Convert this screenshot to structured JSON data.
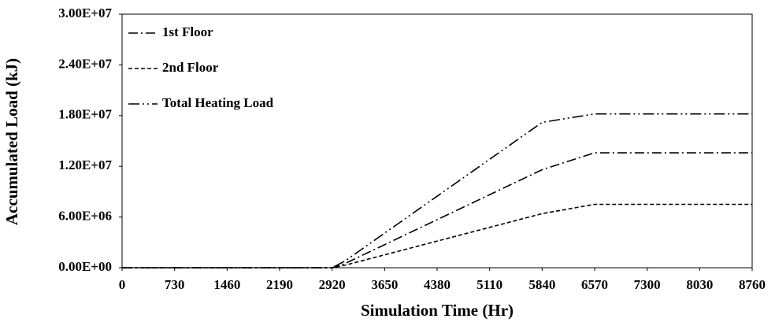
{
  "chart_data": {
    "type": "line",
    "x_label": "Simulation Time (Hr)",
    "y_label": "Accumulated Load (kJ)",
    "x": [
      0,
      2920,
      3100,
      5840,
      6570,
      8760
    ],
    "series": [
      {
        "name": "1st Floor",
        "color": "#000000",
        "style": "dash-dot",
        "values": [
          0,
          0,
          500000,
          11600000,
          13600000,
          13600000
        ]
      },
      {
        "name": "2nd Floor",
        "color": "#000000",
        "style": "dash",
        "values": [
          0,
          0,
          300000,
          6400000,
          7500000,
          7500000
        ]
      },
      {
        "name": "Total Heating Load",
        "color": "#000000",
        "style": "dash-dot-dot",
        "values": [
          0,
          0,
          800000,
          17200000,
          18200000,
          18200000
        ]
      }
    ],
    "xlim": [
      0,
      8760
    ],
    "xticks": [
      0,
      730,
      1460,
      2190,
      2920,
      3650,
      4380,
      5110,
      5840,
      6570,
      7300,
      8030,
      8760
    ],
    "ylim": [
      0,
      30000000
    ],
    "yticks": [
      {
        "value": 0,
        "label": "0.00E+00"
      },
      {
        "value": 6000000,
        "label": "6.00E+06"
      },
      {
        "value": 12000000,
        "label": "1.20E+07"
      },
      {
        "value": 18000000,
        "label": "1.80E+07"
      },
      {
        "value": 24000000,
        "label": "2.40E+07"
      },
      {
        "value": 30000000,
        "label": "3.00E+07"
      }
    ],
    "grid": false,
    "legend": "top-left"
  }
}
